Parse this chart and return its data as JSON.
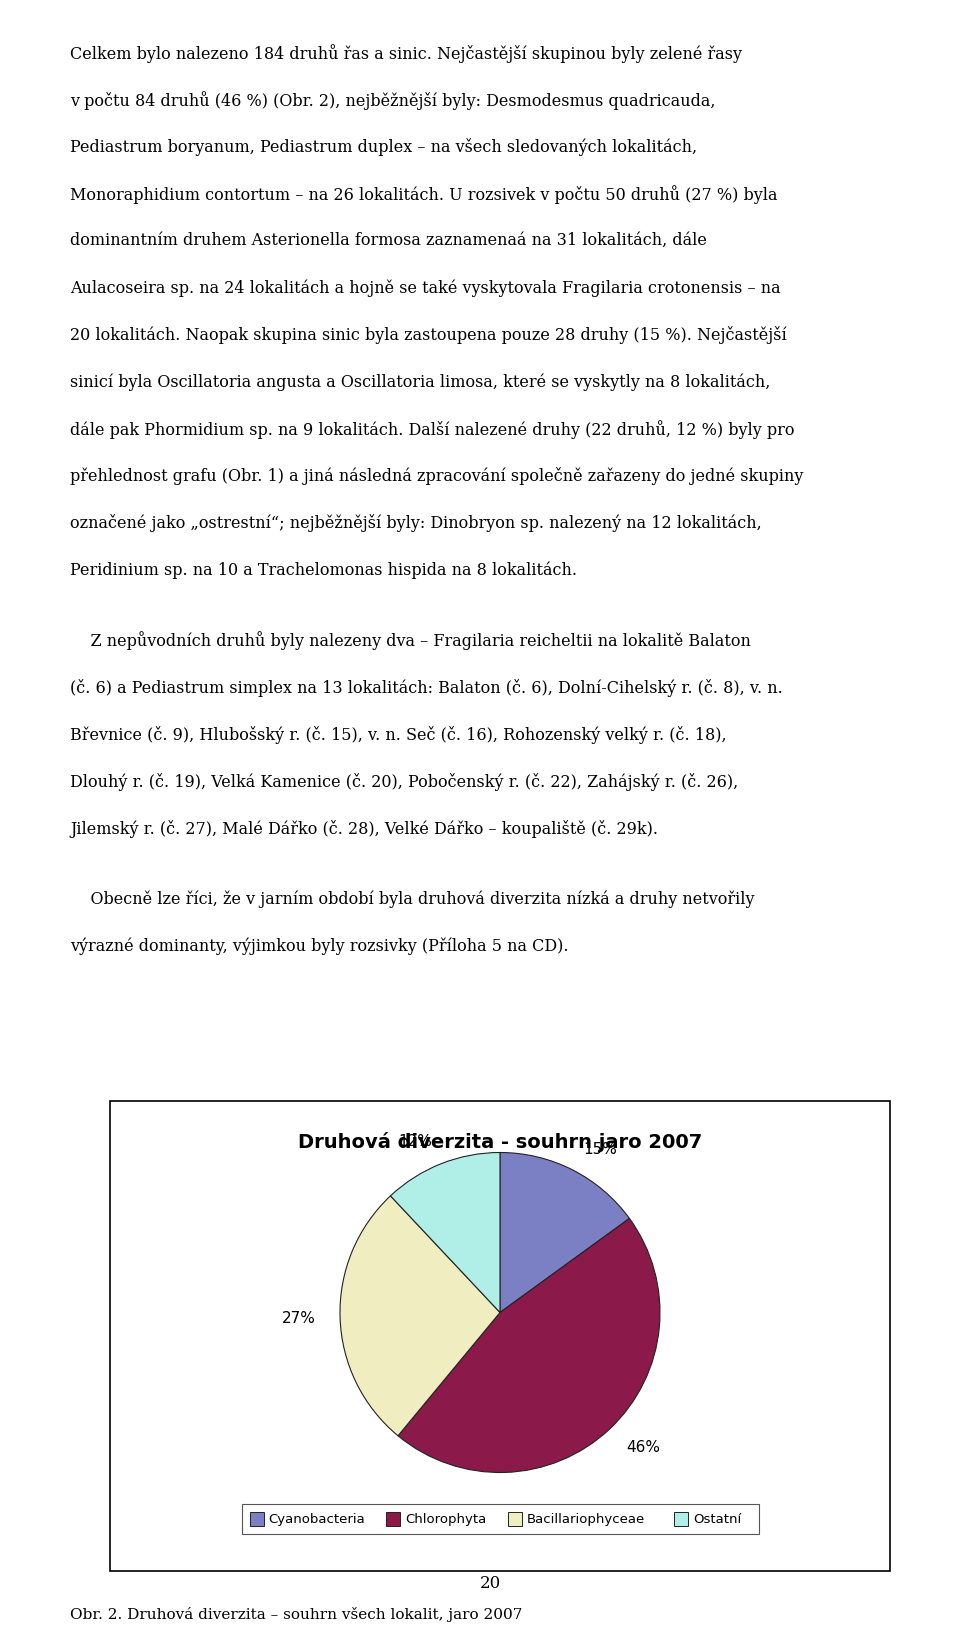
{
  "title": "Druhová diverzita - souhrn jaro 2007",
  "slices": [
    15,
    46,
    27,
    12
  ],
  "labels": [
    "Cyanobacteria",
    "Chlorophyta",
    "Bacillariophyceae",
    "Ostatní"
  ],
  "pct_labels": [
    "15%",
    "46%",
    "27%",
    "12%"
  ],
  "colors": [
    "#7B7FC4",
    "#8B1A4A",
    "#F0EEC0",
    "#B0EEE8"
  ],
  "startangle": 90,
  "caption": "Obr. 2. Druhová diverzita – souhrn všech lokalit, jaro 2007",
  "page_number": "20",
  "para1_lines": [
    "Celkem bylo nalezeno 184 druhů řas a sinic. Nejčastější skupinou byly zelené řasy",
    "v počtu 84 druhů (46 %) (Obr. 2), nejběžnější byly: Desmodesmus quadricauda,",
    "Pediastrum boryanum, Pediastrum duplex – na všech sledovaných lokalitách,",
    "Monoraphidium contortum – na 26 lokalitách. U rozsivek v počtu 50 druhů (27 %) byla",
    "dominantním druhem Asterionella formosa zaznamenaá na 31 lokalitách, dále",
    "Aulacoseira sp. na 24 lokalitách a hojně se také vyskytovala Fragilaria crotonensis – na",
    "20 lokalitách. Naopak skupina sinic byla zastoupena pouze 28 druhy (15 %). Nejčastější",
    "sinicí byla Oscillatoria angusta a Oscillatoria limosa, které se vyskytly na 8 lokalitách,",
    "dále pak Phormidium sp. na 9 lokalitách. Další nalezené druhy (22 druhů, 12 %) byly pro",
    "přehlednost grafu (Obr. 1) a jiná následná zpracování společně zařazeny do jedné skupiny",
    "označené jako „ostrestní“; nejběžnější byly: Dinobryon sp. nalezený na 12 lokalitách,",
    "Peridinium sp. na 10 a Trachelomonas hispida na 8 lokalitách."
  ],
  "para2_lines": [
    "    Z nepůvodních druhů byly nalezeny dva – Fragilaria reicheltii na lokalitě Balaton",
    "(č. 6) a Pediastrum simplex na 13 lokalitách: Balaton (č. 6), Dolní-Cihelský r. (č. 8), v. n.",
    "Břevnice (č. 9), Hlubošský r. (č. 15), v. n. Seč (č. 16), Rohozenský velký r. (č. 18),",
    "Dlouhý r. (č. 19), Velká Kamenice (č. 20), Pobočenský r. (č. 22), Zahájský r. (č. 26),",
    "Jilemský r. (č. 27), Malé Dářko (č. 28), Velké Dářko – koupaliště (č. 29k)."
  ],
  "para3_lines": [
    "    Obecně lze říci, že v jarním období byla druhová diverzita nízká a druhy netvořily",
    "výrazné dominanty, výjimkou byly rozsivky (Příloha 5 na CD)."
  ],
  "background_color": "#ffffff",
  "text_color": "#000000",
  "box_edge_color": "#000000"
}
